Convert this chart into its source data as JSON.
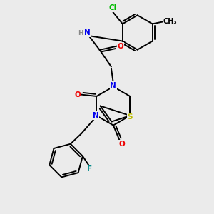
{
  "bg_color": "#ebebeb",
  "atom_colors": {
    "C": "#000000",
    "N": "#0000ee",
    "O": "#ee0000",
    "S": "#bbbb00",
    "F": "#008888",
    "Cl": "#00bb00",
    "H": "#888888"
  },
  "lw": 1.4,
  "fontsize": 7.5
}
